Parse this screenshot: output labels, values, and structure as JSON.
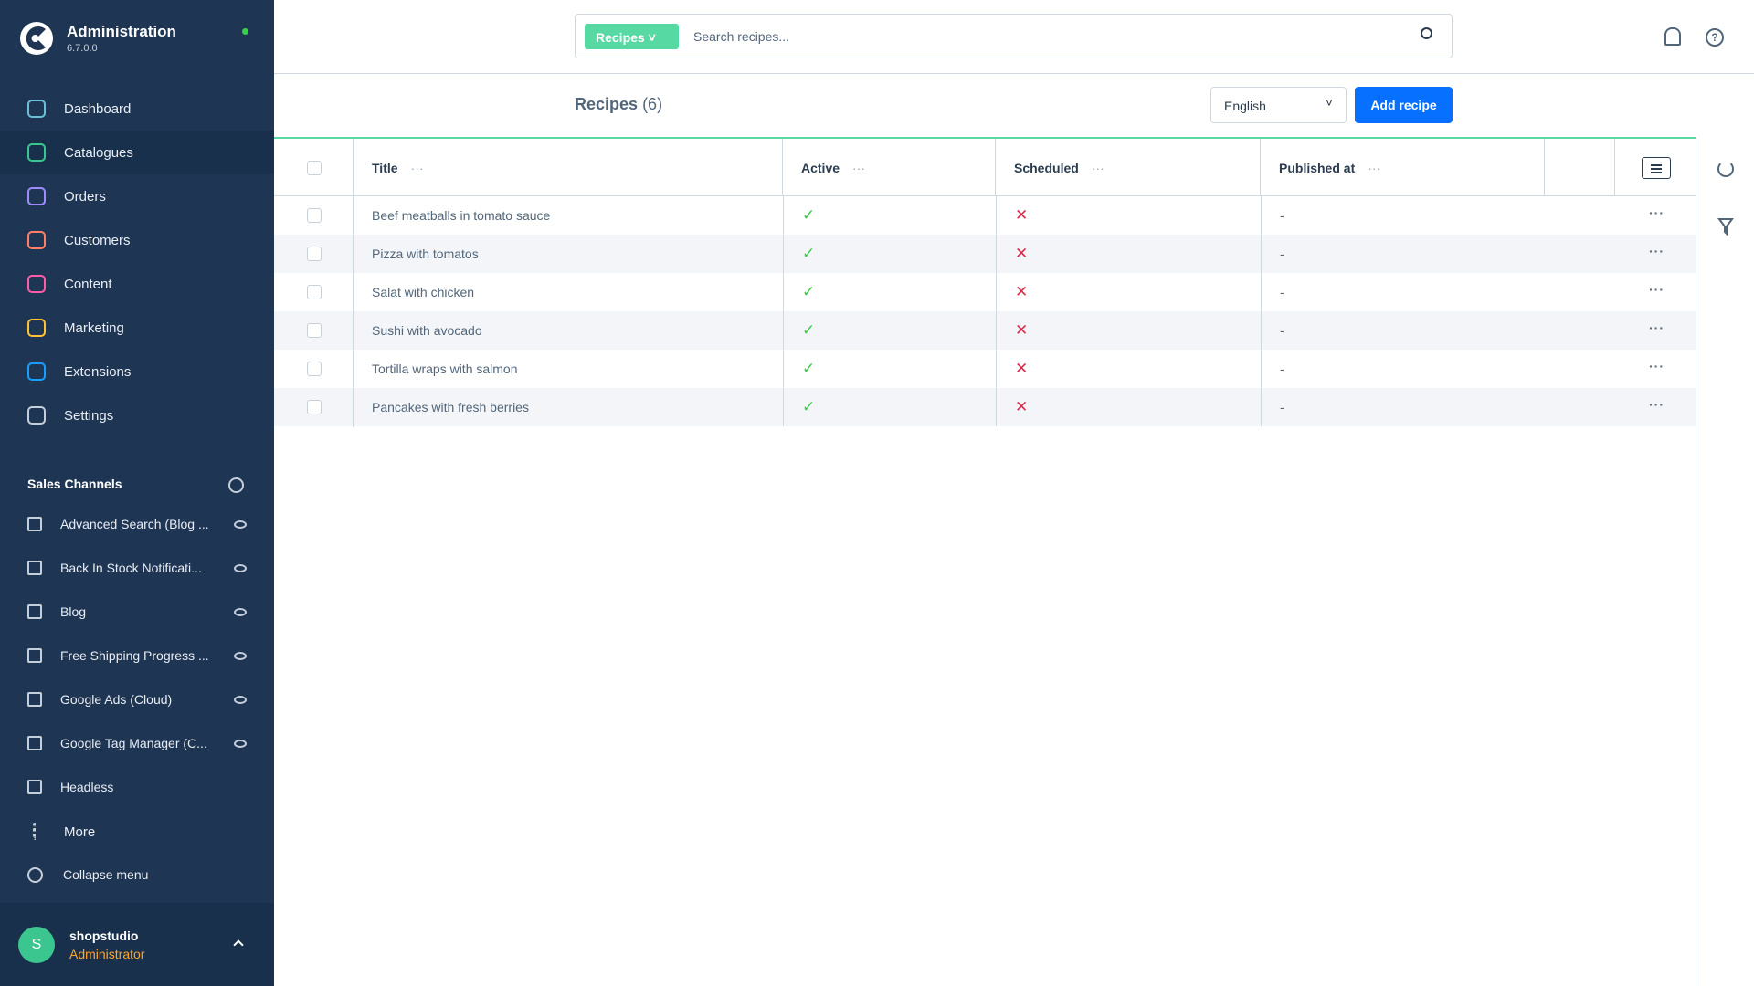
{
  "sidebar": {
    "title": "Administration",
    "version": "6.7.0.0",
    "nav": [
      "Dashboard",
      "Catalogues",
      "Orders",
      "Customers",
      "Content",
      "Marketing",
      "Extensions",
      "Settings"
    ],
    "active_nav": 1,
    "sales_channels_title": "Sales Channels",
    "sales_channels": [
      "Advanced Search (Blog ...",
      "Back In Stock Notificati...",
      "Blog",
      "Free Shipping Progress ...",
      "Google Ads (Cloud)",
      "Google Tag Manager (C...",
      "Headless"
    ],
    "more": "More",
    "collapse": "Collapse menu",
    "user": {
      "initial": "S",
      "name": "shopstudio",
      "role": "Administrator"
    }
  },
  "search": {
    "entity": "Recipes",
    "placeholder": "Search recipes..."
  },
  "page": {
    "title": "Recipes",
    "count": "(6)",
    "language": "English",
    "add_button": "Add recipe"
  },
  "table": {
    "columns": [
      "Title",
      "Active",
      "Scheduled",
      "Published at"
    ],
    "rows": [
      {
        "title": "Beef meatballs in tomato sauce",
        "active": true,
        "scheduled": false,
        "published_at": "-"
      },
      {
        "title": "Pizza with tomatos",
        "active": true,
        "scheduled": false,
        "published_at": "-"
      },
      {
        "title": "Salat with chicken",
        "active": true,
        "scheduled": false,
        "published_at": "-"
      },
      {
        "title": "Sushi with avocado",
        "active": true,
        "scheduled": false,
        "published_at": "-"
      },
      {
        "title": "Tortilla wraps with salmon",
        "active": true,
        "scheduled": false,
        "published_at": "-"
      },
      {
        "title": "Pancakes with fresh berries",
        "active": true,
        "scheduled": false,
        "published_at": "-"
      }
    ]
  }
}
